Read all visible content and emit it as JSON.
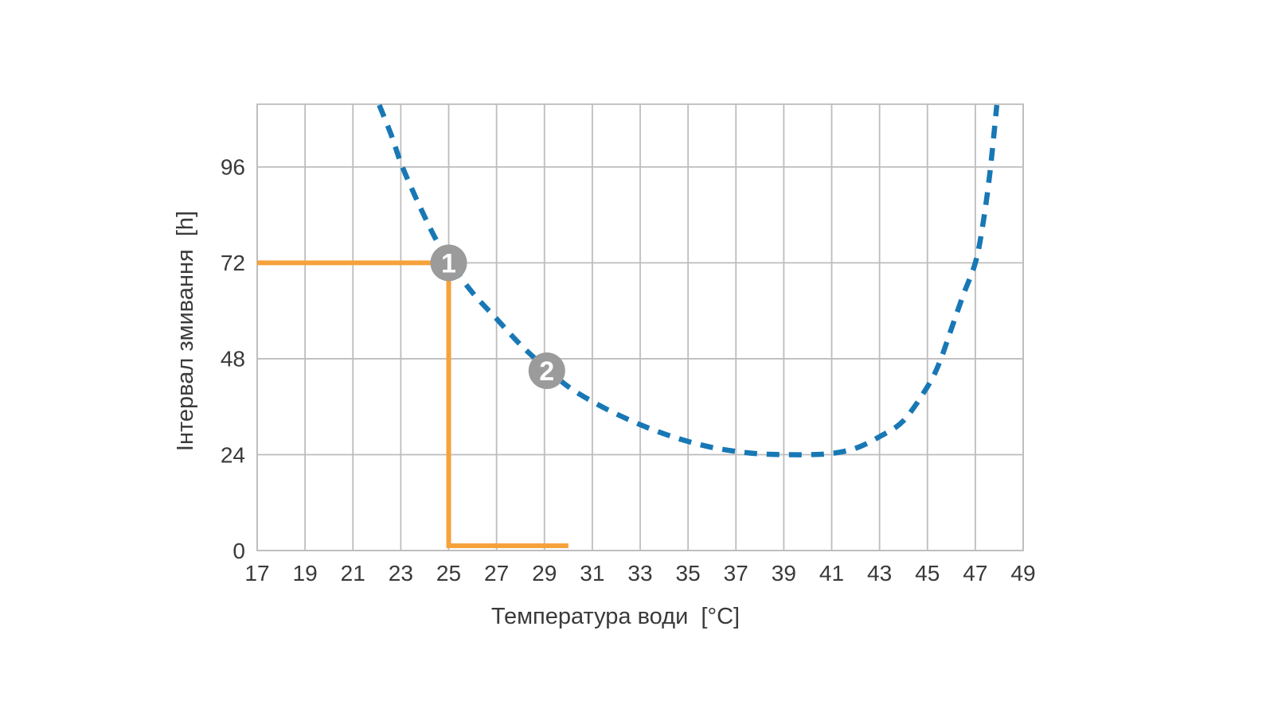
{
  "chart_data": {
    "type": "line",
    "title": "",
    "xlabel": "Температура води  [°C]",
    "ylabel": "Інтервал змивання  [h]",
    "xlim": [
      17,
      49
    ],
    "ylim": [
      0,
      111.7
    ],
    "x_ticks": [
      17,
      19,
      21,
      23,
      25,
      27,
      29,
      31,
      33,
      35,
      37,
      39,
      41,
      43,
      45,
      47,
      49
    ],
    "y_ticks": [
      0,
      24,
      48,
      72,
      96
    ],
    "grid": true,
    "legend": "none",
    "series": [
      {
        "name": "flush-interval-curve",
        "style": "dashed",
        "color": "#1878b5",
        "points": [
          [
            22.1,
            111.5
          ],
          [
            22.6,
            104
          ],
          [
            23,
            97
          ],
          [
            23.5,
            90
          ],
          [
            24,
            83.5
          ],
          [
            24.5,
            77.5
          ],
          [
            25,
            72.5
          ],
          [
            26,
            64.5
          ],
          [
            27,
            58
          ],
          [
            28,
            51.5
          ],
          [
            29,
            46
          ],
          [
            30,
            41
          ],
          [
            31,
            37.3
          ],
          [
            32,
            34.2
          ],
          [
            33,
            31.5
          ],
          [
            34,
            29.2
          ],
          [
            35,
            27.3
          ],
          [
            36,
            25.8
          ],
          [
            37,
            24.8
          ],
          [
            38,
            24.2
          ],
          [
            39,
            24
          ],
          [
            40,
            24
          ],
          [
            41,
            24.3
          ],
          [
            42,
            25.6
          ],
          [
            43,
            28.5
          ],
          [
            44,
            32.5
          ],
          [
            45,
            41
          ],
          [
            45.5,
            47
          ],
          [
            46,
            55.5
          ],
          [
            46.5,
            64
          ],
          [
            47,
            72
          ],
          [
            47.3,
            81
          ],
          [
            47.6,
            94
          ],
          [
            47.9,
            111.5
          ]
        ]
      }
    ],
    "reference_line": {
      "name": "reading-example-line",
      "color": "#f6a23c",
      "points": [
        [
          17,
          72
        ],
        [
          25,
          72
        ],
        [
          25,
          1.2
        ],
        [
          30,
          1.2
        ]
      ]
    },
    "markers": [
      {
        "label": "1",
        "x": 25,
        "y": 72,
        "color": "#9b9b9b",
        "text_color": "#ffffff"
      },
      {
        "label": "2",
        "x": 29.1,
        "y": 45,
        "color": "#9b9b9b",
        "text_color": "#ffffff"
      }
    ],
    "colors": {
      "grid": "#bdbdbd",
      "tick_text": "#3a3a3a",
      "background": "#ffffff"
    }
  }
}
